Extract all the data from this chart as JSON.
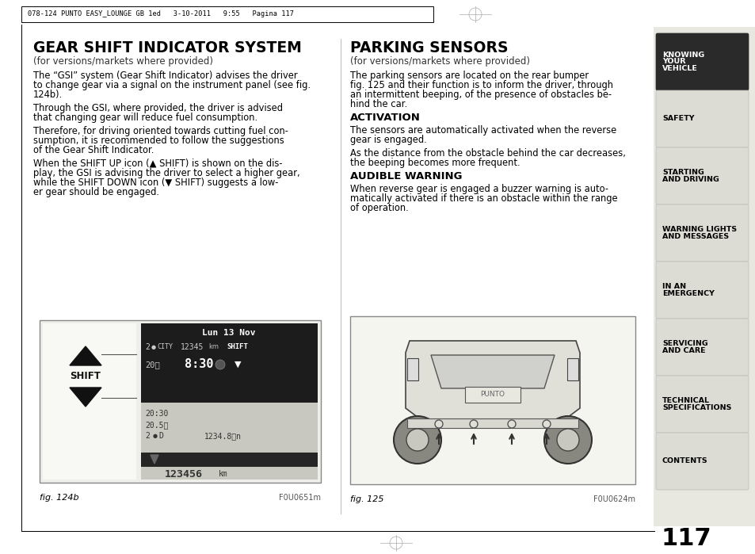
{
  "page_header": "078-124 PUNTO EASY_LOUNGE GB 1ed   3-10-2011   9:55   Pagina 117",
  "page_number": "117",
  "left_title": "GEAR SHIFT INDICATOR SYSTEM",
  "left_subtitle": "(for versions/markets where provided)",
  "left_paragraphs": [
    "The “GSI” system (Gear Shift Indicator) advises the driver\nto change gear via a signal on the instrument panel (see fig.\n124b).",
    "Through the GSI, where provided, the driver is advised\nthat changing gear will reduce fuel consumption.",
    "Therefore, for driving oriented towards cutting fuel con-\nsumption, it is recommended to follow the suggestions\nof the Gear Shift Indicator.",
    "When the SHIFT UP icon (▲ SHIFT) is shown on the dis-\nplay, the GSI is advising the driver to select a higher gear,\nwhile the SHIFT DOWN icon (▼ SHIFT) suggests a low-\ner gear should be engaged."
  ],
  "right_title": "PARKING SENSORS",
  "right_subtitle": "(for versions/markets where provided)",
  "right_intro": "The parking sensors are located on the rear bumper\nfig. 125 and their function is to inform the driver, through\nan intermittent beeping, of the presence of obstacles be-\nhind the car.",
  "right_section1_title": "ACTIVATION",
  "right_section1_paragraphs": [
    "The sensors are automatically activated when the reverse\ngear is engaged.",
    "As the distance from the obstacle behind the car decreases,\nthe beeping becomes more frequent."
  ],
  "right_section2_title": "AUDIBLE WARNING",
  "right_section2_paragraphs": [
    "When reverse gear is engaged a buzzer warning is auto-\nmatically activated if there is an obstacle within the range\nof operation."
  ],
  "fig_left_caption": "fig. 124b",
  "fig_left_code": "F0U0651m",
  "fig_right_caption": "fig. 125",
  "fig_right_code": "F0U0624m",
  "nav_items": [
    {
      "text": "KNOWING\nYOUR\nVEHICLE",
      "active": true
    },
    {
      "text": "SAFETY",
      "active": false
    },
    {
      "text": "STARTING\nAND DRIVING",
      "active": false
    },
    {
      "text": "WARNING LIGHTS\nAND MESSAGES",
      "active": false
    },
    {
      "text": "IN AN\nEMERGENCY",
      "active": false
    },
    {
      "text": "SERVICING\nAND CARE",
      "active": false
    },
    {
      "text": "TECHNICAL\nSPECIFICATIONS",
      "active": false
    },
    {
      "text": "CONTENTS",
      "active": false
    }
  ],
  "nav_bg_active": "#2a2a2a",
  "nav_bg_inactive": "#dcdcd4",
  "nav_text_active": "#ffffff",
  "nav_text_inactive": "#000000"
}
